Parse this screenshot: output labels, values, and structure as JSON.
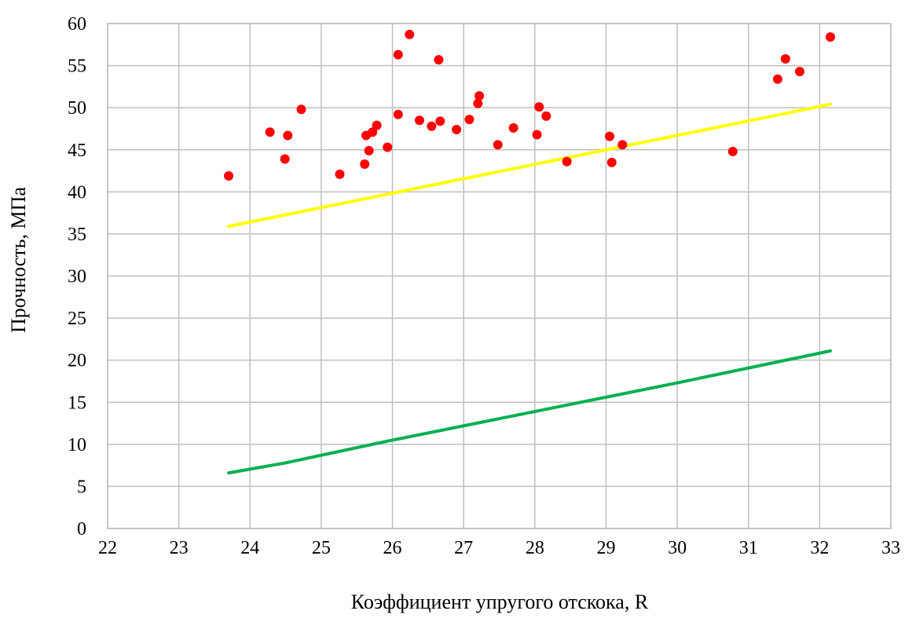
{
  "chart_data": {
    "type": "scatter",
    "title": "",
    "xlabel": "Коэффициент упругого отскока, R",
    "ylabel": "Прочность, МПа",
    "xlim": [
      22,
      33
    ],
    "ylim": [
      0,
      60
    ],
    "x_ticks": [
      "22",
      "23",
      "24",
      "25",
      "26",
      "27",
      "28",
      "29",
      "30",
      "31",
      "32",
      "33"
    ],
    "y_ticks": [
      "0",
      "5",
      "10",
      "15",
      "20",
      "25",
      "30",
      "35",
      "40",
      "45",
      "50",
      "55",
      "60"
    ],
    "grid": true,
    "legend": "none",
    "series": [
      {
        "kind": "scatter",
        "color": "#ff0000",
        "points": [
          [
            23.7,
            41.9
          ],
          [
            24.28,
            47.1
          ],
          [
            24.49,
            43.9
          ],
          [
            24.53,
            46.7
          ],
          [
            24.72,
            49.8
          ],
          [
            25.26,
            42.1
          ],
          [
            25.61,
            43.3
          ],
          [
            25.63,
            46.7
          ],
          [
            25.67,
            44.9
          ],
          [
            25.72,
            47.1
          ],
          [
            25.78,
            47.9
          ],
          [
            25.93,
            45.3
          ],
          [
            26.08,
            56.3
          ],
          [
            26.08,
            49.2
          ],
          [
            26.24,
            58.7
          ],
          [
            26.38,
            48.5
          ],
          [
            26.55,
            47.8
          ],
          [
            26.65,
            55.7
          ],
          [
            26.67,
            48.4
          ],
          [
            26.9,
            47.4
          ],
          [
            27.08,
            48.6
          ],
          [
            27.2,
            50.5
          ],
          [
            27.22,
            51.4
          ],
          [
            27.48,
            45.6
          ],
          [
            27.7,
            47.6
          ],
          [
            28.03,
            46.8
          ],
          [
            28.06,
            50.1
          ],
          [
            28.16,
            49.0
          ],
          [
            28.45,
            43.6
          ],
          [
            29.05,
            46.6
          ],
          [
            29.08,
            43.5
          ],
          [
            29.23,
            45.6
          ],
          [
            30.78,
            44.8
          ],
          [
            31.41,
            53.4
          ],
          [
            31.52,
            55.8
          ],
          [
            31.72,
            54.3
          ],
          [
            32.15,
            58.4
          ]
        ]
      },
      {
        "kind": "line",
        "color": "#ffff00",
        "points": [
          [
            23.7,
            35.9
          ],
          [
            32.15,
            50.4
          ]
        ]
      },
      {
        "kind": "line",
        "color": "#00b050",
        "points": [
          [
            23.7,
            6.6
          ],
          [
            24.5,
            7.8
          ],
          [
            26.0,
            10.5
          ],
          [
            28.0,
            13.9
          ],
          [
            30.0,
            17.3
          ],
          [
            32.15,
            21.1
          ]
        ]
      }
    ]
  }
}
